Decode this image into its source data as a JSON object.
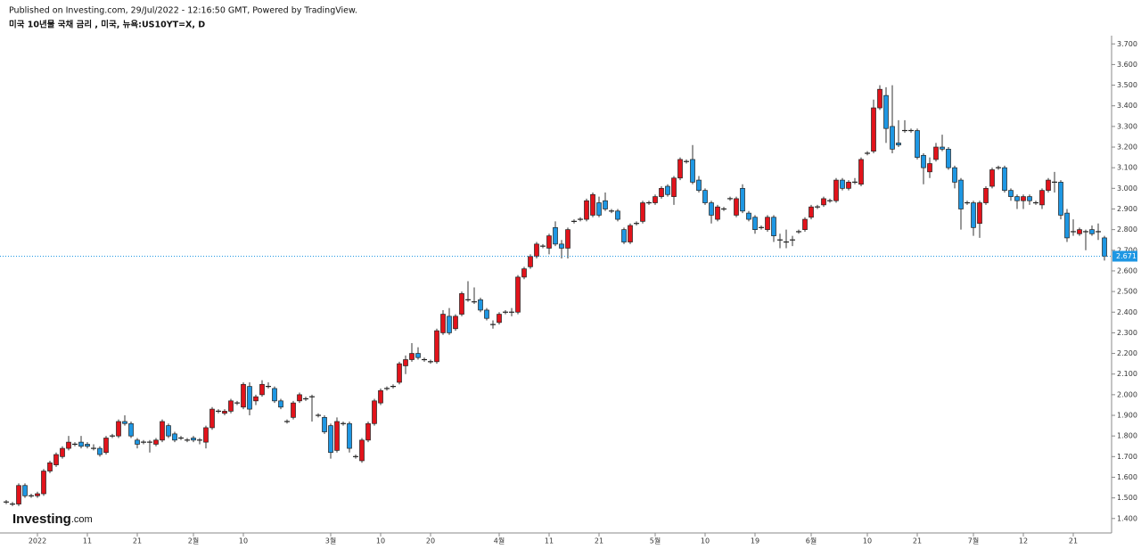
{
  "header": {
    "published": "Published on Investing.com, 29/Jul/2022 - 12:16:50 GMT, Powered by TradingView.",
    "symbol": "미국 10년물 국채 금리 , 미국, 뉴욕:US10YT=X, D"
  },
  "logo": {
    "name": "Investing",
    "suffix": ".com"
  },
  "chart_data": {
    "type": "candlestick",
    "up_color": "#e2131b",
    "down_color": "#1e97e3",
    "grid": false,
    "ylim": [
      1.33,
      3.74
    ],
    "yticks": [
      {
        "value": 1.4,
        "label": "1.400"
      },
      {
        "value": 1.5,
        "label": "1.500"
      },
      {
        "value": 1.6,
        "label": "1.600"
      },
      {
        "value": 1.7,
        "label": "1.700"
      },
      {
        "value": 1.8,
        "label": "1.800"
      },
      {
        "value": 1.9,
        "label": "1.900"
      },
      {
        "value": 2.0,
        "label": "2.000"
      },
      {
        "value": 2.1,
        "label": "2.100"
      },
      {
        "value": 2.2,
        "label": "2.200"
      },
      {
        "value": 2.3,
        "label": "2.300"
      },
      {
        "value": 2.4,
        "label": "2.400"
      },
      {
        "value": 2.5,
        "label": "2.500"
      },
      {
        "value": 2.6,
        "label": "2.600"
      },
      {
        "value": 2.7,
        "label": "2.700"
      },
      {
        "value": 2.8,
        "label": "2.800"
      },
      {
        "value": 2.9,
        "label": "2.900"
      },
      {
        "value": 3.0,
        "label": "3.000"
      },
      {
        "value": 3.1,
        "label": "3.100"
      },
      {
        "value": 3.2,
        "label": "3.200"
      },
      {
        "value": 3.3,
        "label": "3.300"
      },
      {
        "value": 3.4,
        "label": "3.400"
      },
      {
        "value": 3.5,
        "label": "3.500"
      },
      {
        "value": 3.6,
        "label": "3.600"
      },
      {
        "value": 3.7,
        "label": "3.700"
      }
    ],
    "categories": [
      null,
      null,
      null,
      null,
      null,
      "2022",
      null,
      null,
      null,
      null,
      null,
      null,
      null,
      "11",
      null,
      null,
      null,
      null,
      null,
      null,
      null,
      "21",
      null,
      null,
      null,
      null,
      null,
      null,
      null,
      null,
      "2월",
      null,
      null,
      null,
      null,
      null,
      null,
      null,
      "10",
      null,
      null,
      null,
      null,
      null,
      null,
      null,
      null,
      null,
      null,
      null,
      null,
      null,
      "3월",
      null,
      null,
      null,
      null,
      null,
      null,
      null,
      "10",
      null,
      null,
      null,
      null,
      null,
      null,
      null,
      "20",
      null,
      null,
      null,
      null,
      null,
      null,
      null,
      null,
      null,
      null,
      "4월",
      null,
      null,
      null,
      null,
      null,
      null,
      null,
      "11",
      null,
      null,
      null,
      null,
      null,
      null,
      null,
      "21",
      null,
      null,
      null,
      null,
      null,
      null,
      null,
      null,
      "5월",
      null,
      null,
      null,
      null,
      null,
      null,
      null,
      "10",
      null,
      null,
      null,
      null,
      null,
      null,
      null,
      "19",
      null,
      null,
      null,
      null,
      null,
      null,
      null,
      null,
      "6월",
      null,
      null,
      null,
      null,
      null,
      null,
      null,
      null,
      "10",
      null,
      null,
      null,
      null,
      null,
      null,
      null,
      "21",
      null,
      null,
      null,
      null,
      null,
      null,
      null,
      null,
      "7월",
      null,
      null,
      null,
      null,
      null,
      null,
      null,
      "12",
      null,
      null,
      null,
      null,
      null,
      null,
      null,
      "21",
      null,
      null,
      null,
      null,
      null
    ],
    "ohlc": [
      [
        1.48,
        1.49,
        1.47,
        1.48
      ],
      [
        1.47,
        1.48,
        1.46,
        1.47
      ],
      [
        1.47,
        1.57,
        1.46,
        1.56
      ],
      [
        1.56,
        1.57,
        1.5,
        1.51
      ],
      [
        1.51,
        1.52,
        1.5,
        1.51
      ],
      [
        1.51,
        1.53,
        1.5,
        1.52
      ],
      [
        1.52,
        1.64,
        1.51,
        1.63
      ],
      [
        1.63,
        1.68,
        1.62,
        1.67
      ],
      [
        1.66,
        1.72,
        1.65,
        1.71
      ],
      [
        1.7,
        1.75,
        1.69,
        1.74
      ],
      [
        1.74,
        1.8,
        1.73,
        1.77
      ],
      [
        1.76,
        1.77,
        1.75,
        1.76
      ],
      [
        1.77,
        1.8,
        1.74,
        1.75
      ],
      [
        1.76,
        1.77,
        1.74,
        1.75
      ],
      [
        1.74,
        1.76,
        1.73,
        1.74
      ],
      [
        1.74,
        1.75,
        1.7,
        1.71
      ],
      [
        1.72,
        1.8,
        1.71,
        1.79
      ],
      [
        1.8,
        1.81,
        1.79,
        1.8
      ],
      [
        1.8,
        1.88,
        1.79,
        1.87
      ],
      [
        1.87,
        1.9,
        1.85,
        1.86
      ],
      [
        1.86,
        1.87,
        1.79,
        1.8
      ],
      [
        1.78,
        1.79,
        1.74,
        1.76
      ],
      [
        1.77,
        1.78,
        1.76,
        1.77
      ],
      [
        1.77,
        1.78,
        1.72,
        1.77
      ],
      [
        1.76,
        1.79,
        1.75,
        1.78
      ],
      [
        1.78,
        1.88,
        1.77,
        1.87
      ],
      [
        1.85,
        1.86,
        1.79,
        1.8
      ],
      [
        1.81,
        1.82,
        1.77,
        1.78
      ],
      [
        1.79,
        1.8,
        1.78,
        1.79
      ],
      [
        1.78,
        1.79,
        1.77,
        1.78
      ],
      [
        1.79,
        1.8,
        1.77,
        1.78
      ],
      [
        1.78,
        1.79,
        1.76,
        1.78
      ],
      [
        1.77,
        1.85,
        1.74,
        1.84
      ],
      [
        1.84,
        1.94,
        1.83,
        1.93
      ],
      [
        1.92,
        1.93,
        1.91,
        1.92
      ],
      [
        1.91,
        1.93,
        1.9,
        1.92
      ],
      [
        1.92,
        1.98,
        1.91,
        1.97
      ],
      [
        1.96,
        1.97,
        1.95,
        1.96
      ],
      [
        1.94,
        2.06,
        1.93,
        2.05
      ],
      [
        2.04,
        2.06,
        1.9,
        1.93
      ],
      [
        1.97,
        2.0,
        1.95,
        1.99
      ],
      [
        2.0,
        2.07,
        1.99,
        2.05
      ],
      [
        2.04,
        2.06,
        2.03,
        2.04
      ],
      [
        2.03,
        2.04,
        1.96,
        1.97
      ],
      [
        1.97,
        1.98,
        1.93,
        1.94
      ],
      [
        1.87,
        1.88,
        1.86,
        1.87
      ],
      [
        1.89,
        1.97,
        1.88,
        1.96
      ],
      [
        1.97,
        2.01,
        1.96,
        2.0
      ],
      [
        1.98,
        1.99,
        1.97,
        1.98
      ],
      [
        1.99,
        2.0,
        1.87,
        1.99
      ],
      [
        1.9,
        1.91,
        1.89,
        1.9
      ],
      [
        1.89,
        1.9,
        1.81,
        1.82
      ],
      [
        1.85,
        1.86,
        1.69,
        1.72
      ],
      [
        1.73,
        1.89,
        1.72,
        1.87
      ],
      [
        1.86,
        1.87,
        1.85,
        1.86
      ],
      [
        1.86,
        1.87,
        1.72,
        1.74
      ],
      [
        1.7,
        1.71,
        1.69,
        1.7
      ],
      [
        1.68,
        1.79,
        1.67,
        1.78
      ],
      [
        1.78,
        1.87,
        1.77,
        1.86
      ],
      [
        1.86,
        1.98,
        1.85,
        1.97
      ],
      [
        1.96,
        2.03,
        1.95,
        2.02
      ],
      [
        2.03,
        2.04,
        2.02,
        2.03
      ],
      [
        2.04,
        2.05,
        2.03,
        2.04
      ],
      [
        2.06,
        2.16,
        2.05,
        2.15
      ],
      [
        2.14,
        2.19,
        2.1,
        2.17
      ],
      [
        2.17,
        2.25,
        2.16,
        2.2
      ],
      [
        2.2,
        2.23,
        2.17,
        2.18
      ],
      [
        2.17,
        2.18,
        2.16,
        2.17
      ],
      [
        2.16,
        2.17,
        2.15,
        2.16
      ],
      [
        2.16,
        2.32,
        2.15,
        2.31
      ],
      [
        2.3,
        2.41,
        2.29,
        2.39
      ],
      [
        2.38,
        2.42,
        2.29,
        2.3
      ],
      [
        2.32,
        2.39,
        2.31,
        2.38
      ],
      [
        2.39,
        2.5,
        2.38,
        2.49
      ],
      [
        2.46,
        2.55,
        2.45,
        2.46
      ],
      [
        2.45,
        2.52,
        2.44,
        2.45
      ],
      [
        2.46,
        2.47,
        2.4,
        2.41
      ],
      [
        2.41,
        2.42,
        2.36,
        2.37
      ],
      [
        2.34,
        2.36,
        2.32,
        2.34
      ],
      [
        2.35,
        2.4,
        2.34,
        2.39
      ],
      [
        2.4,
        2.41,
        2.39,
        2.4
      ],
      [
        2.4,
        2.42,
        2.38,
        2.4
      ],
      [
        2.4,
        2.58,
        2.39,
        2.57
      ],
      [
        2.57,
        2.62,
        2.56,
        2.61
      ],
      [
        2.62,
        2.68,
        2.61,
        2.67
      ],
      [
        2.67,
        2.74,
        2.66,
        2.73
      ],
      [
        2.72,
        2.73,
        2.71,
        2.72
      ],
      [
        2.71,
        2.78,
        2.68,
        2.77
      ],
      [
        2.81,
        2.84,
        2.72,
        2.73
      ],
      [
        2.73,
        2.75,
        2.66,
        2.71
      ],
      [
        2.71,
        2.81,
        2.66,
        2.8
      ],
      [
        2.84,
        2.85,
        2.83,
        2.84
      ],
      [
        2.85,
        2.86,
        2.84,
        2.85
      ],
      [
        2.85,
        2.95,
        2.84,
        2.94
      ],
      [
        2.87,
        2.98,
        2.86,
        2.97
      ],
      [
        2.93,
        2.96,
        2.86,
        2.87
      ],
      [
        2.94,
        2.98,
        2.89,
        2.9
      ],
      [
        2.89,
        2.9,
        2.88,
        2.89
      ],
      [
        2.89,
        2.9,
        2.84,
        2.85
      ],
      [
        2.8,
        2.81,
        2.73,
        2.74
      ],
      [
        2.74,
        2.83,
        2.73,
        2.82
      ],
      [
        2.83,
        2.84,
        2.82,
        2.83
      ],
      [
        2.84,
        2.94,
        2.83,
        2.93
      ],
      [
        2.93,
        2.94,
        2.92,
        2.93
      ],
      [
        2.93,
        2.97,
        2.92,
        2.96
      ],
      [
        2.96,
        3.01,
        2.95,
        3.0
      ],
      [
        3.01,
        3.02,
        2.96,
        2.97
      ],
      [
        2.96,
        3.06,
        2.92,
        3.05
      ],
      [
        3.05,
        3.15,
        3.04,
        3.14
      ],
      [
        3.13,
        3.14,
        3.12,
        3.13
      ],
      [
        3.14,
        3.21,
        3.02,
        3.03
      ],
      [
        3.04,
        3.06,
        2.98,
        2.99
      ],
      [
        2.99,
        3.0,
        2.92,
        2.93
      ],
      [
        2.93,
        2.94,
        2.83,
        2.87
      ],
      [
        2.85,
        2.92,
        2.84,
        2.91
      ],
      [
        2.9,
        2.91,
        2.89,
        2.9
      ],
      [
        2.95,
        2.96,
        2.94,
        2.95
      ],
      [
        2.87,
        2.96,
        2.86,
        2.95
      ],
      [
        3.0,
        3.02,
        2.88,
        2.89
      ],
      [
        2.88,
        2.89,
        2.84,
        2.85
      ],
      [
        2.86,
        2.87,
        2.78,
        2.8
      ],
      [
        2.81,
        2.82,
        2.8,
        2.81
      ],
      [
        2.8,
        2.87,
        2.79,
        2.86
      ],
      [
        2.86,
        2.87,
        2.74,
        2.77
      ],
      [
        2.75,
        2.78,
        2.71,
        2.75
      ],
      [
        2.74,
        2.8,
        2.71,
        2.74
      ],
      [
        2.75,
        2.77,
        2.72,
        2.75
      ],
      [
        2.79,
        2.8,
        2.78,
        2.79
      ],
      [
        2.8,
        2.86,
        2.79,
        2.85
      ],
      [
        2.86,
        2.92,
        2.85,
        2.91
      ],
      [
        2.91,
        2.92,
        2.9,
        2.91
      ],
      [
        2.92,
        2.96,
        2.91,
        2.95
      ],
      [
        2.94,
        2.95,
        2.93,
        2.94
      ],
      [
        2.94,
        3.05,
        2.93,
        3.04
      ],
      [
        3.04,
        3.05,
        2.99,
        3.0
      ],
      [
        3.0,
        3.04,
        2.99,
        3.03
      ],
      [
        3.03,
        3.05,
        3.02,
        3.03
      ],
      [
        3.02,
        3.15,
        3.01,
        3.14
      ],
      [
        3.17,
        3.18,
        3.16,
        3.17
      ],
      [
        3.18,
        3.43,
        3.17,
        3.39
      ],
      [
        3.39,
        3.5,
        3.38,
        3.48
      ],
      [
        3.45,
        3.49,
        3.22,
        3.29
      ],
      [
        3.3,
        3.5,
        3.17,
        3.19
      ],
      [
        3.22,
        3.33,
        3.2,
        3.21
      ],
      [
        3.28,
        3.33,
        3.27,
        3.28
      ],
      [
        3.28,
        3.29,
        3.27,
        3.28
      ],
      [
        3.28,
        3.29,
        3.14,
        3.15
      ],
      [
        3.16,
        3.17,
        3.02,
        3.1
      ],
      [
        3.08,
        3.15,
        3.05,
        3.12
      ],
      [
        3.14,
        3.22,
        3.13,
        3.2
      ],
      [
        3.2,
        3.26,
        3.18,
        3.19
      ],
      [
        3.19,
        3.2,
        3.09,
        3.1
      ],
      [
        3.1,
        3.11,
        3.0,
        3.03
      ],
      [
        3.04,
        3.05,
        2.8,
        2.9
      ],
      [
        2.93,
        2.94,
        2.92,
        2.93
      ],
      [
        2.93,
        2.94,
        2.77,
        2.81
      ],
      [
        2.83,
        2.94,
        2.76,
        2.93
      ],
      [
        2.93,
        3.01,
        2.92,
        3.0
      ],
      [
        3.01,
        3.1,
        3.0,
        3.09
      ],
      [
        3.1,
        3.11,
        3.09,
        3.1
      ],
      [
        3.1,
        3.11,
        2.98,
        2.99
      ],
      [
        2.99,
        3.0,
        2.94,
        2.96
      ],
      [
        2.96,
        2.97,
        2.9,
        2.94
      ],
      [
        2.94,
        2.97,
        2.9,
        2.96
      ],
      [
        2.96,
        2.97,
        2.92,
        2.94
      ],
      [
        2.93,
        2.94,
        2.92,
        2.93
      ],
      [
        2.92,
        3.0,
        2.9,
        2.99
      ],
      [
        2.99,
        3.05,
        2.98,
        3.04
      ],
      [
        3.03,
        3.08,
        2.98,
        3.03
      ],
      [
        3.03,
        3.04,
        2.85,
        2.87
      ],
      [
        2.88,
        2.9,
        2.74,
        2.76
      ],
      [
        2.79,
        2.85,
        2.77,
        2.79
      ],
      [
        2.78,
        2.81,
        2.77,
        2.8
      ],
      [
        2.79,
        2.8,
        2.7,
        2.79
      ],
      [
        2.8,
        2.82,
        2.77,
        2.78
      ],
      [
        2.79,
        2.83,
        2.75,
        2.79
      ],
      [
        2.76,
        2.77,
        2.65,
        2.671
      ]
    ]
  }
}
